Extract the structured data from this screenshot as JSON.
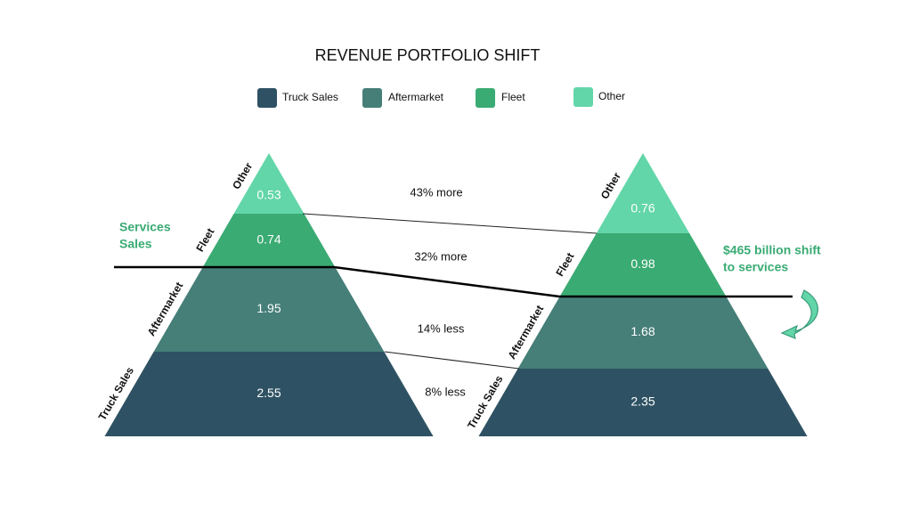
{
  "title": "REVENUE PORTFOLIO SHIFT",
  "legend": [
    {
      "label": "Truck Sales",
      "color": "#2e5263"
    },
    {
      "label": "Aftermarket",
      "color": "#467e78"
    },
    {
      "label": "Fleet",
      "color": "#3aab73"
    },
    {
      "label": "Other",
      "color": "#62d6a8"
    }
  ],
  "pyramids": [
    {
      "segments": [
        {
          "label": "Other",
          "value": 0.53
        },
        {
          "label": "Fleet",
          "value": 0.74
        },
        {
          "label": "Aftermarket",
          "value": 1.95
        },
        {
          "label": "Truck Sales",
          "value": 2.55
        }
      ]
    },
    {
      "segments": [
        {
          "label": "Other",
          "value": 0.76
        },
        {
          "label": "Fleet",
          "value": 0.98
        },
        {
          "label": "Aftermarket",
          "value": 1.68
        },
        {
          "label": "Truck Sales",
          "value": 2.35
        }
      ]
    }
  ],
  "comparisons": [
    "43% more",
    "32% more",
    "14% less",
    "8% less"
  ],
  "annotations": {
    "services_sales": [
      "Services",
      "Sales"
    ],
    "shift": [
      "$465 billion shift",
      "to services"
    ]
  }
}
